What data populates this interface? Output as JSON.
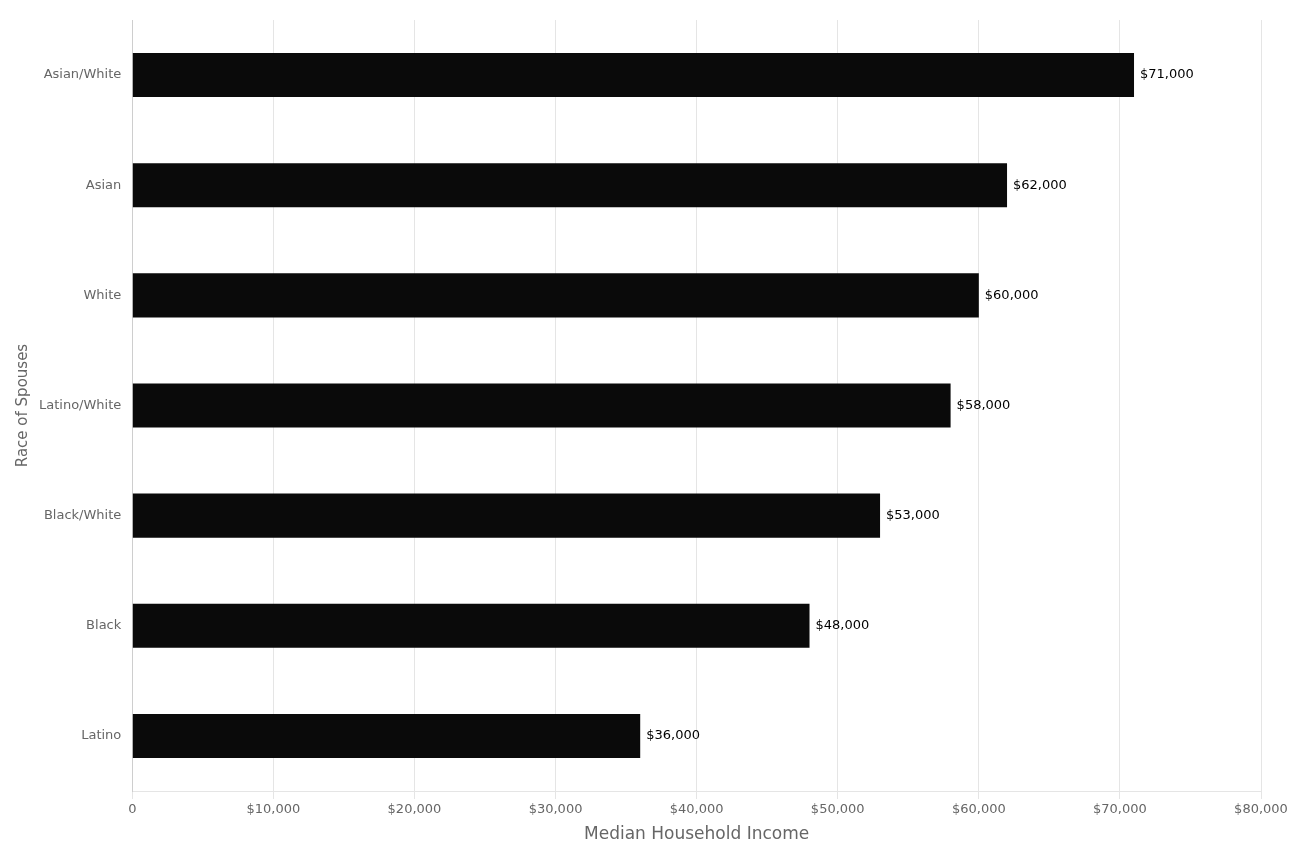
{
  "chart_data": {
    "type": "bar",
    "orientation": "horizontal",
    "categories": [
      "Latino",
      "Black",
      "Black/White",
      "Latino/White",
      "White",
      "Asian",
      "Asian/White"
    ],
    "values": [
      36000,
      48000,
      53000,
      58000,
      60000,
      62000,
      71000
    ],
    "value_labels": [
      "$36,000",
      "$48,000",
      "$53,000",
      "$58,000",
      "$60,000",
      "$62,000",
      "$71,000"
    ],
    "data_labels": true,
    "color": "#0a0a0a",
    "xlabel": "Median Household Income",
    "ylabel": "Race of Spouses",
    "xlim": [
      0,
      80000
    ],
    "xticks": [
      0,
      {
        "value": 10000,
        "label": "$10,000"
      },
      {
        "value": 20000,
        "label": "$20,000"
      },
      {
        "value": 30000,
        "label": "$30,000"
      },
      {
        "value": 40000,
        "label": "$40,000"
      },
      {
        "value": 50000,
        "label": "$50,000"
      },
      {
        "value": 60000,
        "label": "$60,000"
      },
      {
        "value": 70000,
        "label": "$70,000"
      },
      {
        "value": 80000,
        "label": "$80,000"
      }
    ],
    "grid": true
  }
}
